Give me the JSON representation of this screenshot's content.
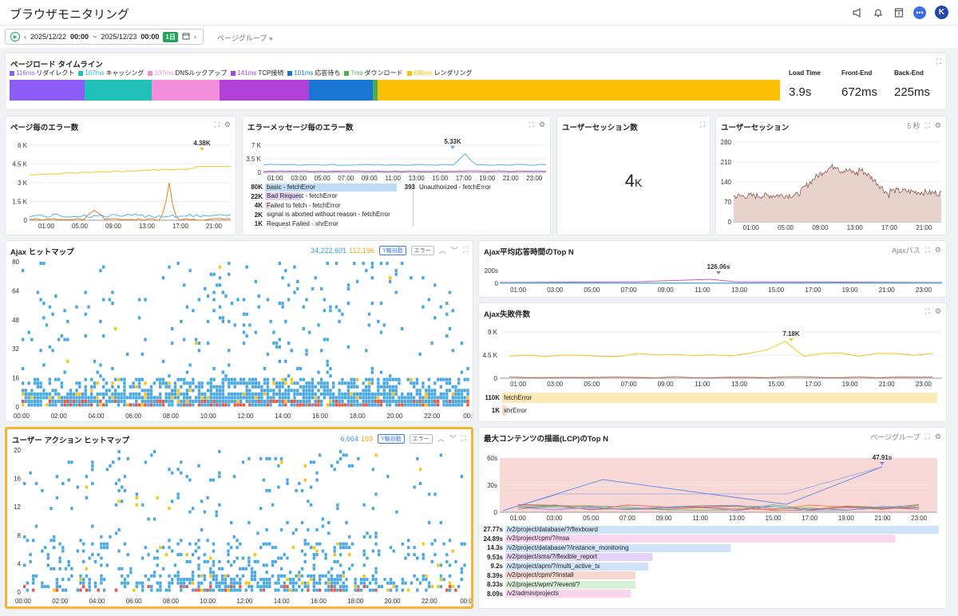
{
  "app": {
    "title": "ブラウザモニタリング"
  },
  "filter": {
    "date_from": "2025/12/22",
    "time_from": "00:00",
    "sep": "~",
    "date_to": "2025/12/23",
    "time_to": "00:00",
    "range_badge": "1日",
    "pagegroup": "ページグループ"
  },
  "timeline": {
    "title": "ページロード タイムライン",
    "segments": [
      {
        "ms": "116ms",
        "label": "リダイレクト",
        "color": "#8b5cf6",
        "frac": 0.097
      },
      {
        "ms": "107ms",
        "label": "キャッシング",
        "color": "#1fc0b8",
        "frac": 0.087
      },
      {
        "ms": "107ms",
        "label": "DNSルックアップ",
        "color": "#f28fd8",
        "frac": 0.089
      },
      {
        "ms": "141ms",
        "label": "TCP接続",
        "color": "#b040d8",
        "frac": 0.116
      },
      {
        "ms": "101ms",
        "label": "応答待ち",
        "color": "#1976d2",
        "frac": 0.083
      },
      {
        "ms": "7ms",
        "label": "ダウンロード",
        "color": "#4caf50",
        "frac": 0.006
      },
      {
        "ms": "638ms",
        "label": "レンダリング",
        "color": "#ffc107",
        "frac": 0.522
      }
    ],
    "metrics": [
      {
        "label": "Load Time",
        "value": "3.9s"
      },
      {
        "label": "Front-End",
        "value": "672ms"
      },
      {
        "label": "Back-End",
        "value": "225ms"
      }
    ]
  },
  "err_page": {
    "title": "ページ毎のエラー数",
    "yticks": [
      "6 K",
      "4.5 K",
      "3 K",
      "1.5 K",
      "0"
    ],
    "xticks": [
      "01:00",
      "05:00",
      "09:00",
      "13:00",
      "17:00",
      "21:00"
    ],
    "peak": "4.38K",
    "colors": [
      "#f5c518",
      "#e67e22",
      "#4fb3e8",
      "#7d5ba6",
      "#2ecc71"
    ]
  },
  "err_msg": {
    "title": "エラーメッセージ毎のエラー数",
    "yticks": [
      "7 K",
      "3.5 K",
      "0"
    ],
    "xticks": [
      "01:00",
      "03:00",
      "05:00",
      "07:00",
      "09:00",
      "11:00",
      "13:00",
      "15:00",
      "17:00",
      "19:00",
      "21:00",
      "23:00"
    ],
    "peak": "5.33K",
    "rows": [
      {
        "num": "80K",
        "label": "basic - fetchError",
        "color": "#bfdcf7",
        "frac": 1
      },
      {
        "num": "22K",
        "label": "Bad Request - fetchError",
        "color": "#e4d3f5",
        "frac": 0.27
      },
      {
        "num": "4K",
        "label": "Failed to fetch - fetchError",
        "color": "#f6e0e8",
        "frac": 0.05
      },
      {
        "num": "2K",
        "label": "signal is aborted without reason - fetchError",
        "color": "#fff",
        "frac": 0
      },
      {
        "num": "1K",
        "label": "Request Failed - xhrError",
        "color": "#fff",
        "frac": 0
      }
    ],
    "right_rows": [
      {
        "num": "393",
        "label": "Unauthorized - fetchError"
      }
    ]
  },
  "sess_count": {
    "title": "ユーザーセッション数",
    "value": "4",
    "unit": "K"
  },
  "sess": {
    "title": "ユーザーセッション",
    "interval": "5 秒",
    "yticks": [
      "280",
      "210",
      "140",
      "70",
      "0"
    ],
    "xticks": [
      "01:00",
      "05:00",
      "09:00",
      "13:00",
      "17:00",
      "21:00"
    ]
  },
  "ajax_hm": {
    "title": "Ajax ヒットマップ",
    "count_blue": "34,222,601",
    "count_orange": "112,196",
    "ybtn": "Y軸自動",
    "err": "エラー",
    "yticks": [
      "80",
      "64",
      "48",
      "32",
      "16",
      "0"
    ],
    "xticks": [
      "00:00",
      "02:00",
      "04:00",
      "06:00",
      "08:00",
      "10:00",
      "12:00",
      "14:00",
      "16:00",
      "18:00",
      "20:00",
      "22:00",
      "00:0"
    ]
  },
  "ajax_top": {
    "title": "Ajax平均応答時間のTop N",
    "subtitle": "Ajaxパス",
    "ytick": "200s",
    "peak": "126.06s",
    "xticks": [
      "01:00",
      "03:00",
      "05:00",
      "07:00",
      "09:00",
      "11:00",
      "13:00",
      "15:00",
      "17:00",
      "19:00",
      "21:00",
      "23:00"
    ]
  },
  "ajax_fail": {
    "title": "Ajax失敗件数",
    "yticks": [
      "9 K",
      "4.5 K",
      "0"
    ],
    "peak": "7.18K",
    "xticks": [
      "01:00",
      "03:00",
      "05:00",
      "07:00",
      "09:00",
      "11:00",
      "13:00",
      "15:00",
      "17:00",
      "19:00",
      "21:00",
      "23:00"
    ],
    "rows": [
      {
        "num": "110K",
        "label": "fetchError",
        "color": "#fde9b5",
        "frac": 1
      },
      {
        "num": "1K",
        "label": "xhrError",
        "color": "#f5d8cf",
        "frac": 0.01
      }
    ]
  },
  "ua_hm": {
    "title": "ユーザー アクション ヒットマップ",
    "count_blue": "6,664",
    "count_orange": "169",
    "ybtn": "Y軸自動",
    "err": "エラー",
    "yticks": [
      "20",
      "16",
      "12",
      "8",
      "4",
      "0"
    ],
    "xticks": [
      "00:00",
      "02:00",
      "04:00",
      "06:00",
      "08:00",
      "10:00",
      "12:00",
      "14:00",
      "16:00",
      "18:00",
      "20:00",
      "22:00",
      "00:0"
    ]
  },
  "lcp": {
    "title": "最大コンテンツの描画(LCP)のTop N",
    "subtitle": "ページグループ",
    "yticks": [
      "60s",
      "30s",
      "0"
    ],
    "peak": "47.91s",
    "xticks": [
      "01:00",
      "03:00",
      "05:00",
      "07:00",
      "09:00",
      "11:00",
      "13:00",
      "15:00",
      "17:00",
      "19:00",
      "21:00",
      "23:00"
    ],
    "rows": [
      {
        "num": "27.77s",
        "label": "/v2/project/database/?/flexboard",
        "color": "#cfe3f8",
        "frac": 1
      },
      {
        "num": "24.89s",
        "label": "/v2/project/cpm/?/msa",
        "color": "#fad6ee",
        "frac": 0.9
      },
      {
        "num": "14.3s",
        "label": "/v2/project/database/?/instance_monitoring",
        "color": "#cfe3f8",
        "frac": 0.52
      },
      {
        "num": "9.53s",
        "label": "/v2/project/sms/?/flexible_report",
        "color": "#e4d3f5",
        "frac": 0.34
      },
      {
        "num": "9.2s",
        "label": "/v2/project/apm/?/multi_active_tx",
        "color": "#cfe3f8",
        "frac": 0.33
      },
      {
        "num": "8.39s",
        "label": "/v2/project/cpm/?/install",
        "color": "#f5d8cf",
        "frac": 0.3
      },
      {
        "num": "8.33s",
        "label": "/v2/project/wpm/?/event/?",
        "color": "#d7f0d7",
        "frac": 0.3
      },
      {
        "num": "8.09s",
        "label": "/v2/admin/projects",
        "color": "#fad6ee",
        "frac": 0.29
      }
    ]
  }
}
